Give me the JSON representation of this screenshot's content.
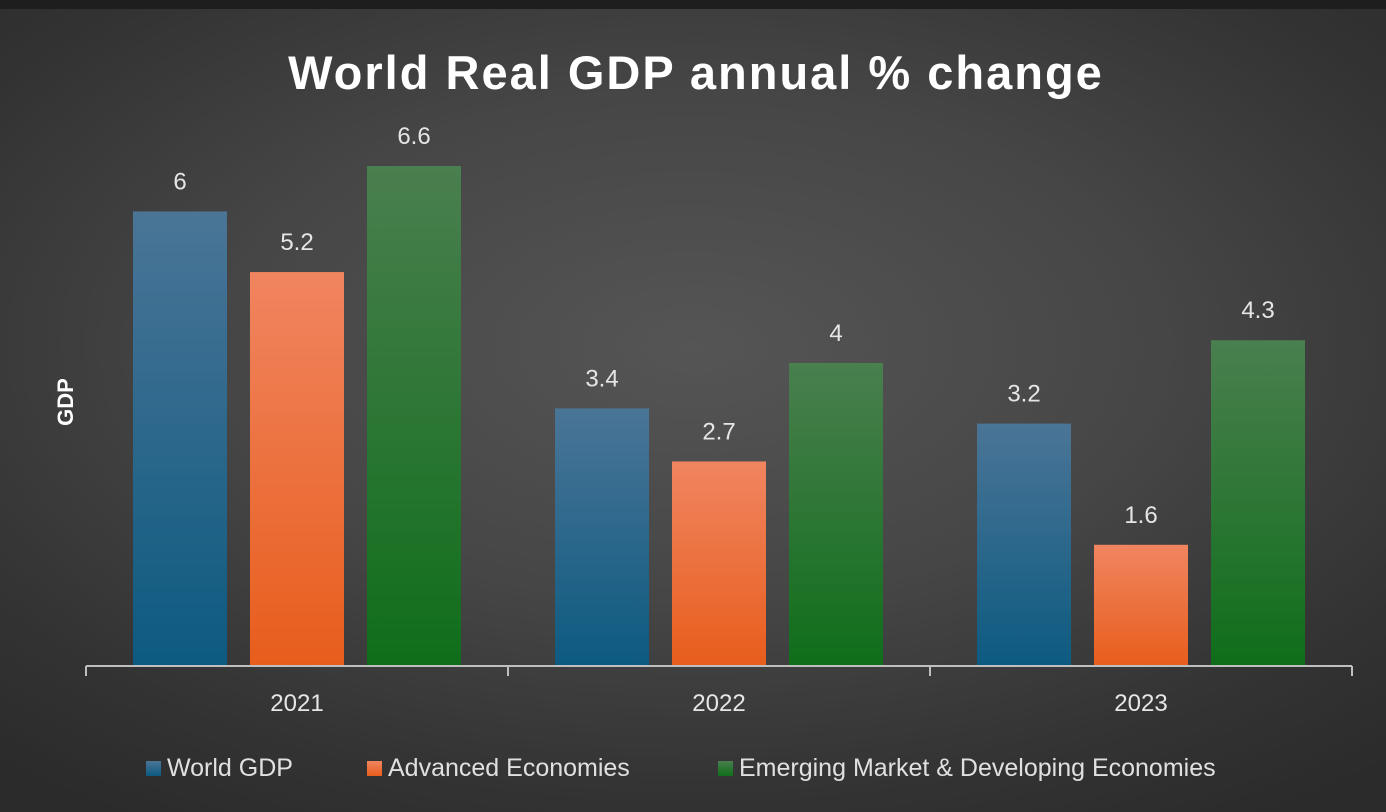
{
  "chart_data": {
    "type": "bar",
    "title": "World Real GDP annual % change",
    "xlabel": "",
    "ylabel": "GDP",
    "categories": [
      "2021",
      "2022",
      "2023"
    ],
    "series": [
      {
        "name": "World GDP",
        "values": [
          6,
          3.4,
          3.2
        ],
        "color_top": "#4a7597",
        "color_bottom": "#0d5a80"
      },
      {
        "name": "Advanced Economies",
        "values": [
          5.2,
          2.7,
          1.6
        ],
        "color_top": "#f08560",
        "color_bottom": "#e85d1c"
      },
      {
        "name": "Emerging Market & Developing Economies",
        "values": [
          6.6,
          4,
          4.3
        ],
        "color_top": "#4a7f4f",
        "color_bottom": "#0f6e1a"
      }
    ],
    "ylim": [
      0,
      6.6
    ],
    "grid": false,
    "legend": "bottom",
    "data_labels": true
  }
}
